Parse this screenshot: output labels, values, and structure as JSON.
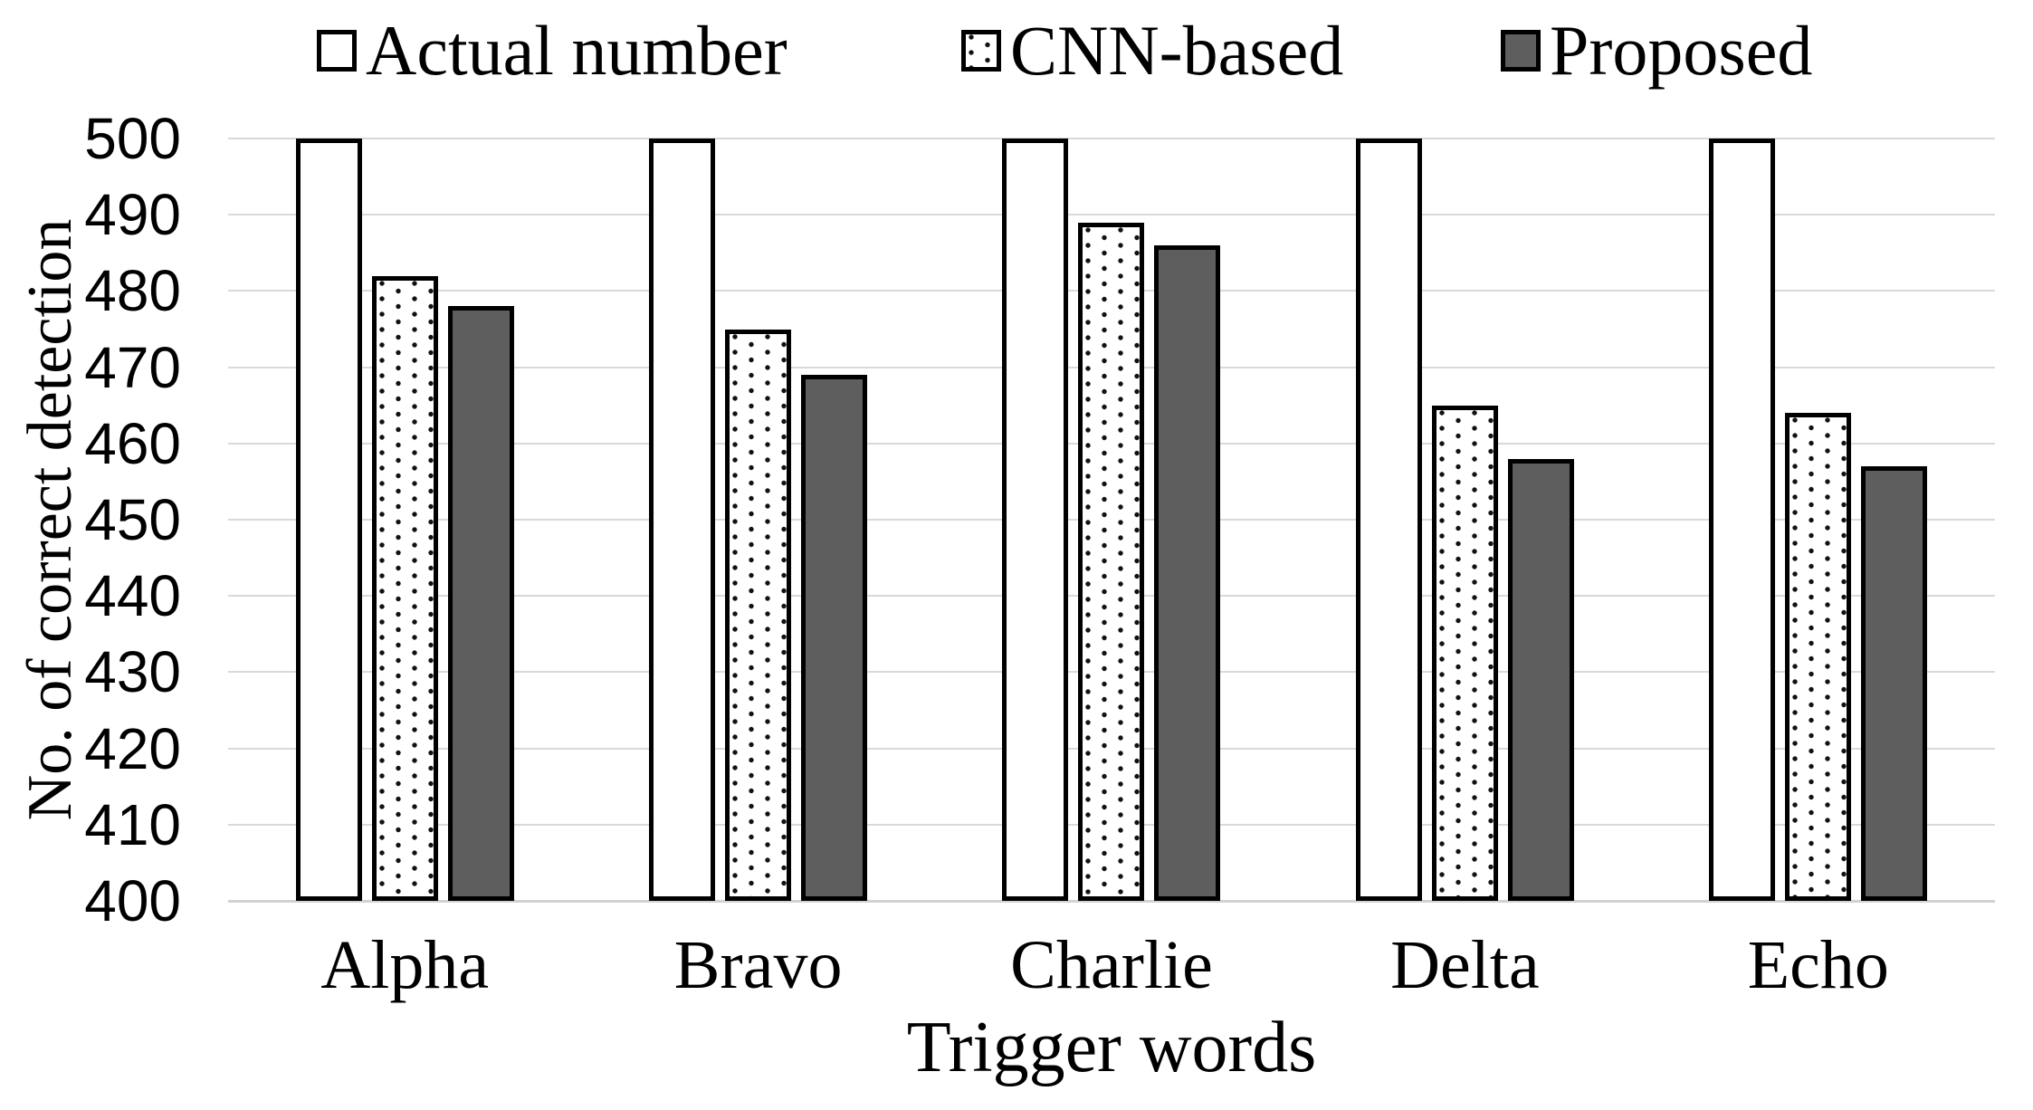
{
  "chart_data": {
    "type": "bar",
    "title": "",
    "categories": [
      "Alpha",
      "Bravo",
      "Charlie",
      "Delta",
      "Echo"
    ],
    "series": [
      {
        "name": "Actual number",
        "style": "white",
        "values": [
          500,
          500,
          500,
          500,
          500
        ]
      },
      {
        "name": "CNN-based",
        "style": "dotted",
        "values": [
          482,
          475,
          489,
          465,
          464
        ]
      },
      {
        "name": "Proposed",
        "style": "gray",
        "values": [
          478,
          469,
          486,
          458,
          457
        ]
      }
    ],
    "xlabel": "Trigger words",
    "ylabel": "No. of correct detection",
    "ylim": [
      400,
      500
    ],
    "ytick_step": 10,
    "yticks": [
      "400",
      "410",
      "420",
      "430",
      "440",
      "450",
      "460",
      "470",
      "480",
      "490",
      "500"
    ],
    "grid": true,
    "legend_position": "top"
  },
  "legend": {
    "items": [
      {
        "label": "Actual number",
        "swatch": "white"
      },
      {
        "label": "CNN-based",
        "swatch": "dotted"
      },
      {
        "label": "Proposed",
        "swatch": "gray"
      }
    ]
  },
  "axes": {
    "x_title": "Trigger words",
    "y_title": "No. of correct detection"
  },
  "colors": {
    "proposed_fill": "#5e5e5e",
    "bar_border": "#000000",
    "gridline": "#d9d9d9",
    "background": "#ffffff",
    "dot": "#111111"
  }
}
